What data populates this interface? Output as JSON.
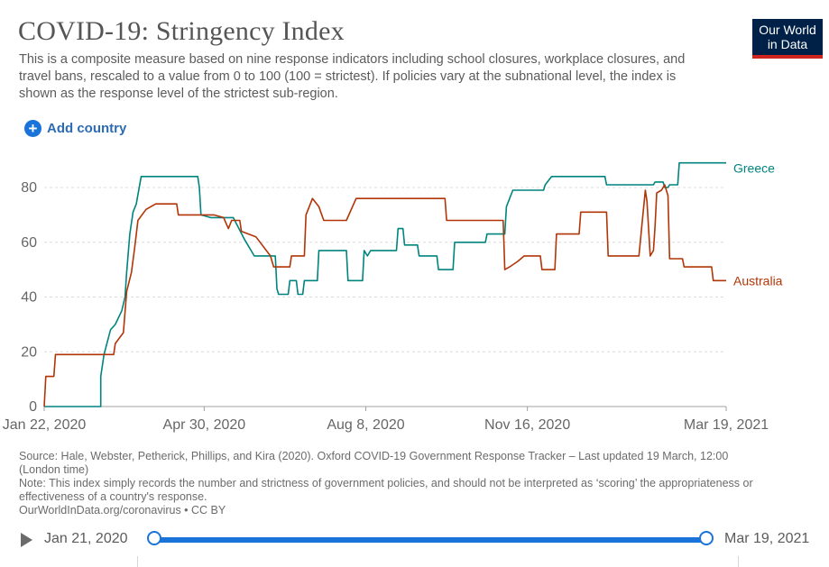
{
  "header": {
    "title": "COVID-19: Stringency Index",
    "subtitle": "This is a composite measure based on nine response indicators including school closures, workplace closures, and travel bans, rescaled to a value from 0 to 100 (100 = strictest). If policies vary at the subnational level, the index is shown as the response level of the strictest sub-region.",
    "logo_line1": "Our World",
    "logo_line2": "in Data",
    "logo_color": "#002147",
    "logo_accent": "#ce261e"
  },
  "controls": {
    "add_country_label": "Add country",
    "add_country_icon": "plus-circle-icon"
  },
  "chart_data": {
    "type": "line",
    "xlabel": "",
    "ylabel": "",
    "x_start": "2020-01-22",
    "x_end": "2021-03-19",
    "ylim": [
      0,
      80
    ],
    "y_ticks": [
      0,
      20,
      40,
      60,
      80
    ],
    "x_tick_labels": [
      "Jan 22, 2020",
      "Apr 30, 2020",
      "Aug 8, 2020",
      "Nov 16, 2020",
      "Mar 19, 2021"
    ],
    "x_tick_dates": [
      "2020-01-22",
      "2020-04-30",
      "2020-08-08",
      "2020-11-16",
      "2021-03-19"
    ],
    "grid": "horizontal dashed",
    "legend": "labels at line ends",
    "series": [
      {
        "name": "Greece",
        "color": "#00847e",
        "points": [
          [
            "2020-01-22",
            0
          ],
          [
            "2020-02-26",
            0
          ],
          [
            "2020-02-26",
            11
          ],
          [
            "2020-02-28",
            19
          ],
          [
            "2020-03-03",
            28
          ],
          [
            "2020-03-06",
            30
          ],
          [
            "2020-03-10",
            35
          ],
          [
            "2020-03-12",
            40
          ],
          [
            "2020-03-13",
            49
          ],
          [
            "2020-03-15",
            63
          ],
          [
            "2020-03-17",
            71
          ],
          [
            "2020-03-19",
            74
          ],
          [
            "2020-03-22",
            84
          ],
          [
            "2020-04-26",
            84
          ],
          [
            "2020-04-27",
            80
          ],
          [
            "2020-04-28",
            70
          ],
          [
            "2020-05-04",
            69
          ],
          [
            "2020-05-18",
            69
          ],
          [
            "2020-05-25",
            61
          ],
          [
            "2020-05-31",
            55
          ],
          [
            "2020-06-13",
            55
          ],
          [
            "2020-06-14",
            43
          ],
          [
            "2020-06-15",
            41
          ],
          [
            "2020-06-21",
            41
          ],
          [
            "2020-06-22",
            46
          ],
          [
            "2020-06-26",
            46
          ],
          [
            "2020-06-27",
            41
          ],
          [
            "2020-06-30",
            41
          ],
          [
            "2020-07-01",
            46
          ],
          [
            "2020-07-09",
            46
          ],
          [
            "2020-07-10",
            57
          ],
          [
            "2020-07-27",
            57
          ],
          [
            "2020-07-28",
            46
          ],
          [
            "2020-08-06",
            46
          ],
          [
            "2020-08-07",
            57
          ],
          [
            "2020-08-09",
            55
          ],
          [
            "2020-08-11",
            57
          ],
          [
            "2020-08-27",
            57
          ],
          [
            "2020-08-28",
            65
          ],
          [
            "2020-08-31",
            65
          ],
          [
            "2020-09-01",
            59
          ],
          [
            "2020-09-09",
            59
          ],
          [
            "2020-09-10",
            55
          ],
          [
            "2020-09-21",
            55
          ],
          [
            "2020-09-22",
            50
          ],
          [
            "2020-10-01",
            50
          ],
          [
            "2020-10-02",
            60
          ],
          [
            "2020-10-21",
            60
          ],
          [
            "2020-10-22",
            63
          ],
          [
            "2020-11-02",
            63
          ],
          [
            "2020-11-03",
            73
          ],
          [
            "2020-11-07",
            79
          ],
          [
            "2020-11-26",
            79
          ],
          [
            "2020-11-27",
            81
          ],
          [
            "2020-12-01",
            84
          ],
          [
            "2020-12-28",
            84
          ],
          [
            "2021-01-03",
            84
          ],
          [
            "2021-01-04",
            81
          ],
          [
            "2021-02-02",
            81
          ],
          [
            "2021-02-03",
            82
          ],
          [
            "2021-02-08",
            82
          ],
          [
            "2021-02-09",
            80
          ],
          [
            "2021-02-11",
            80
          ],
          [
            "2021-02-12",
            81
          ],
          [
            "2021-02-17",
            81
          ],
          [
            "2021-02-18",
            89
          ],
          [
            "2021-03-19",
            89
          ]
        ]
      },
      {
        "name": "Australia",
        "color": "#b13507",
        "points": [
          [
            "2020-01-22",
            0
          ],
          [
            "2020-01-23",
            11
          ],
          [
            "2020-01-28",
            11
          ],
          [
            "2020-01-29",
            19
          ],
          [
            "2020-03-05",
            19
          ],
          [
            "2020-03-06",
            23
          ],
          [
            "2020-03-11",
            27
          ],
          [
            "2020-03-13",
            42
          ],
          [
            "2020-03-16",
            49
          ],
          [
            "2020-03-18",
            58
          ],
          [
            "2020-03-20",
            68
          ],
          [
            "2020-03-25",
            72
          ],
          [
            "2020-03-31",
            74
          ],
          [
            "2020-04-13",
            74
          ],
          [
            "2020-04-14",
            70
          ],
          [
            "2020-05-06",
            70
          ],
          [
            "2020-05-12",
            69
          ],
          [
            "2020-05-15",
            65
          ],
          [
            "2020-05-17",
            68
          ],
          [
            "2020-05-22",
            68
          ],
          [
            "2020-05-23",
            64
          ],
          [
            "2020-06-01",
            62
          ],
          [
            "2020-06-10",
            55
          ],
          [
            "2020-06-12",
            51
          ],
          [
            "2020-06-22",
            51
          ],
          [
            "2020-06-23",
            55
          ],
          [
            "2020-07-01",
            55
          ],
          [
            "2020-07-02",
            70
          ],
          [
            "2020-07-06",
            76
          ],
          [
            "2020-07-10",
            73
          ],
          [
            "2020-07-13",
            68
          ],
          [
            "2020-07-27",
            68
          ],
          [
            "2020-08-02",
            76
          ],
          [
            "2020-09-26",
            76
          ],
          [
            "2020-09-27",
            68
          ],
          [
            "2020-11-01",
            68
          ],
          [
            "2020-11-02",
            50
          ],
          [
            "2020-11-05",
            51
          ],
          [
            "2020-11-10",
            53
          ],
          [
            "2020-11-14",
            55
          ],
          [
            "2020-11-24",
            55
          ],
          [
            "2020-11-25",
            50
          ],
          [
            "2020-12-03",
            50
          ],
          [
            "2020-12-04",
            63
          ],
          [
            "2020-12-18",
            63
          ],
          [
            "2020-12-19",
            71
          ],
          [
            "2021-01-04",
            71
          ],
          [
            "2021-01-05",
            55
          ],
          [
            "2021-01-24",
            55
          ],
          [
            "2021-01-26",
            67
          ],
          [
            "2021-01-28",
            79
          ],
          [
            "2021-01-29",
            75
          ],
          [
            "2021-01-31",
            55
          ],
          [
            "2021-02-02",
            57
          ],
          [
            "2021-02-03",
            66
          ],
          [
            "2021-02-04",
            78
          ],
          [
            "2021-02-07",
            79
          ],
          [
            "2021-02-09",
            81
          ],
          [
            "2021-02-11",
            77
          ],
          [
            "2021-02-12",
            54
          ],
          [
            "2021-02-20",
            54
          ],
          [
            "2021-02-21",
            51
          ],
          [
            "2021-03-10",
            51
          ],
          [
            "2021-03-11",
            46
          ],
          [
            "2021-03-19",
            46
          ]
        ]
      }
    ]
  },
  "footer": {
    "source": "Source: Hale, Webster, Petherick, Phillips, and Kira (2020). Oxford COVID-19 Government Response Tracker – Last updated 19 March, 12:00 (London time)",
    "note": "Note: This index simply records the number and strictness of government policies, and should not be interpreted as ‘scoring’ the appropriateness or effectiveness of a country's response.",
    "link": "OurWorldInData.org/coronavirus • CC BY"
  },
  "timeline": {
    "start_label": "Jan 21, 2020",
    "end_label": "Mar 19, 2021",
    "accent": "#1a73d8",
    "play_icon": "play-icon"
  }
}
